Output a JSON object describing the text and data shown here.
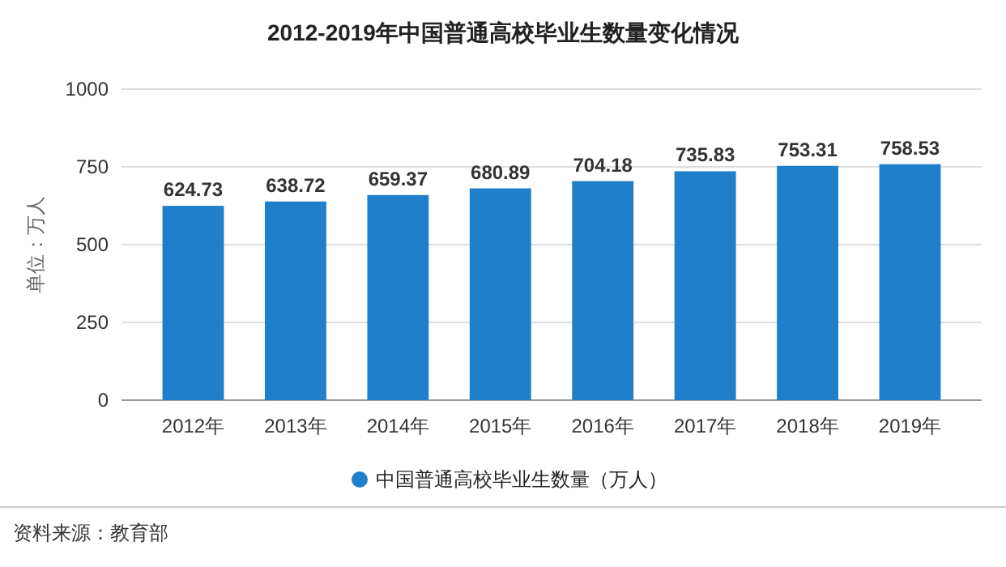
{
  "chart_data": {
    "type": "bar",
    "title": "2012-2019年中国普通高校毕业生数量变化情况",
    "ylabel": "单位：万人",
    "categories": [
      "2012年",
      "2013年",
      "2014年",
      "2015年",
      "2016年",
      "2017年",
      "2018年",
      "2019年"
    ],
    "series": [
      {
        "name": "中国普通高校毕业生数量（万人）",
        "color": "#1f7fcb",
        "values": [
          624.73,
          638.72,
          659.37,
          680.89,
          704.18,
          735.83,
          753.31,
          758.53
        ]
      }
    ],
    "ylim": [
      0,
      1000
    ],
    "yticks": [
      0,
      250,
      500,
      750,
      1000
    ],
    "grid": "y",
    "legend": "bottom",
    "data_labels": true,
    "annotations": [
      "资料来源：教育部"
    ]
  }
}
